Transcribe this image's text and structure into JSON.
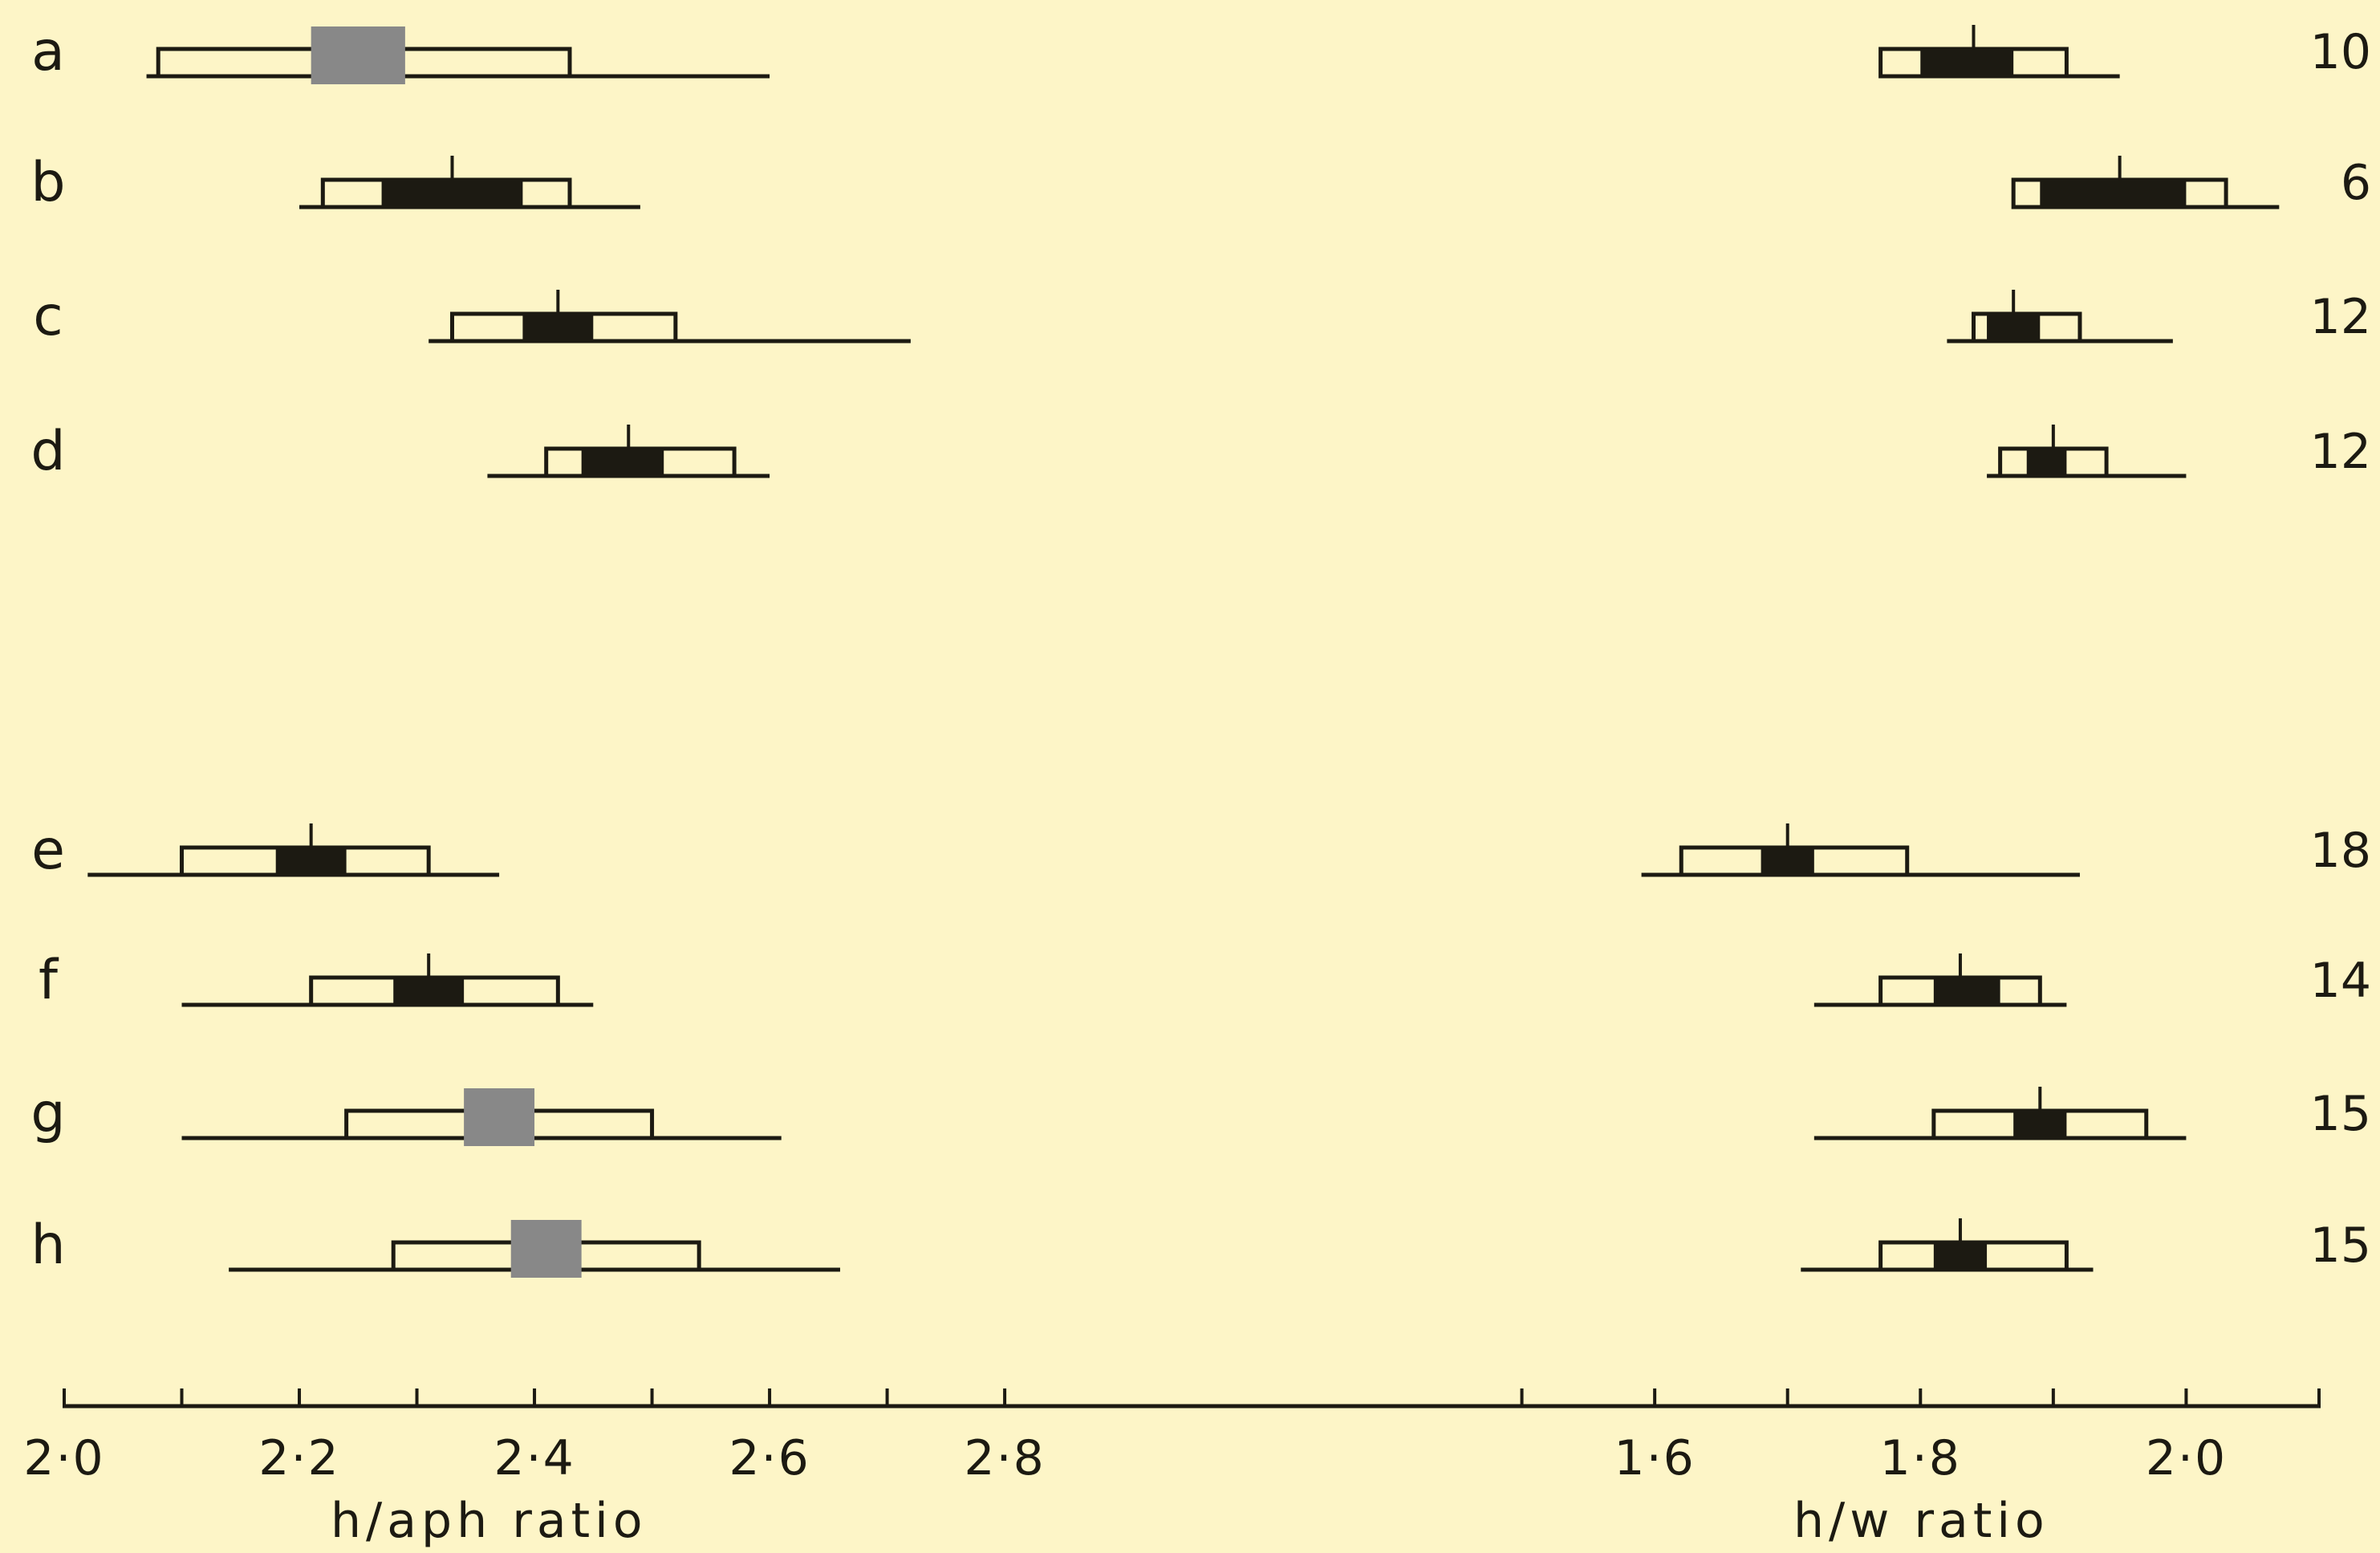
{
  "colors": {
    "background": "#fdf5c7",
    "ink": "#1c1a12",
    "box_fill": "#fdf5c7",
    "mean_fill": "#1c1a12",
    "highlight": "#888888"
  },
  "chart_data": [
    {
      "type": "box",
      "panel": "left",
      "xlabel": "h/aph ratio",
      "xlim": [
        2.0,
        2.86
      ],
      "tick_values": [
        2.0,
        2.1,
        2.2,
        2.3,
        2.4,
        2.5,
        2.6,
        2.7,
        2.8
      ],
      "tick_labels": [
        {
          "value": 2.0,
          "label": "2·0"
        },
        {
          "value": 2.2,
          "label": "2·2"
        },
        {
          "value": 2.4,
          "label": "2·4"
        },
        {
          "value": 2.6,
          "label": "2·6"
        },
        {
          "value": 2.8,
          "label": "2·8"
        }
      ],
      "series": [
        {
          "label": "a",
          "min": 2.07,
          "max": 2.6,
          "sd_low": 2.08,
          "sd_high": 2.43,
          "mean_low": 2.21,
          "mean_high": 2.29,
          "mean": 2.25,
          "mean_marker": "grey"
        },
        {
          "label": "b",
          "min": 2.2,
          "max": 2.49,
          "sd_low": 2.22,
          "sd_high": 2.43,
          "mean_low": 2.27,
          "mean_high": 2.39,
          "mean": 2.33,
          "mean_marker": "black"
        },
        {
          "label": "c",
          "min": 2.31,
          "max": 2.72,
          "sd_low": 2.33,
          "sd_high": 2.52,
          "mean_low": 2.39,
          "mean_high": 2.45,
          "mean": 2.42,
          "mean_marker": "black"
        },
        {
          "label": "d",
          "min": 2.36,
          "max": 2.6,
          "sd_low": 2.41,
          "sd_high": 2.57,
          "mean_low": 2.44,
          "mean_high": 2.51,
          "mean": 2.48,
          "mean_marker": "black"
        },
        {
          "label": "e",
          "min": 2.02,
          "max": 2.37,
          "sd_low": 2.1,
          "sd_high": 2.31,
          "mean_low": 2.18,
          "mean_high": 2.24,
          "mean": 2.21,
          "mean_marker": "black"
        },
        {
          "label": "f",
          "min": 2.1,
          "max": 2.45,
          "sd_low": 2.21,
          "sd_high": 2.42,
          "mean_low": 2.28,
          "mean_high": 2.34,
          "mean": 2.31,
          "mean_marker": "black"
        },
        {
          "label": "g",
          "min": 2.1,
          "max": 2.61,
          "sd_low": 2.24,
          "sd_high": 2.5,
          "mean_low": 2.34,
          "mean_high": 2.4,
          "mean": 2.37,
          "mean_marker": "grey"
        },
        {
          "label": "h",
          "min": 2.14,
          "max": 2.66,
          "sd_low": 2.28,
          "sd_high": 2.54,
          "mean_low": 2.38,
          "mean_high": 2.44,
          "mean": 2.41,
          "mean_marker": "grey"
        }
      ]
    },
    {
      "type": "box",
      "panel": "right",
      "xlabel": "h/w ratio",
      "xlim": [
        1.49,
        2.1
      ],
      "tick_values": [
        1.5,
        1.6,
        1.7,
        1.8,
        1.9,
        2.0,
        2.1
      ],
      "tick_labels": [
        {
          "value": 1.6,
          "label": "1·6"
        },
        {
          "value": 1.8,
          "label": "1·8"
        },
        {
          "value": 2.0,
          "label": "2·0"
        }
      ],
      "series": [
        {
          "label": "a",
          "min": 1.77,
          "max": 1.95,
          "sd_low": 1.77,
          "sd_high": 1.91,
          "mean_low": 1.8,
          "mean_high": 1.87,
          "mean": 1.84,
          "mean_marker": "black"
        },
        {
          "label": "b",
          "min": 1.87,
          "max": 2.07,
          "sd_low": 1.87,
          "sd_high": 2.03,
          "mean_low": 1.89,
          "mean_high": 2.0,
          "mean": 1.95,
          "mean_marker": "black"
        },
        {
          "label": "c",
          "min": 1.82,
          "max": 1.99,
          "sd_low": 1.84,
          "sd_high": 1.92,
          "mean_low": 1.85,
          "mean_high": 1.89,
          "mean": 1.87,
          "mean_marker": "black"
        },
        {
          "label": "d",
          "min": 1.85,
          "max": 2.0,
          "sd_low": 1.86,
          "sd_high": 1.94,
          "mean_low": 1.88,
          "mean_high": 1.91,
          "mean": 1.9,
          "mean_marker": "black"
        },
        {
          "label": "e",
          "min": 1.59,
          "max": 1.92,
          "sd_low": 1.62,
          "sd_high": 1.79,
          "mean_low": 1.68,
          "mean_high": 1.72,
          "mean": 1.7,
          "mean_marker": "black"
        },
        {
          "label": "f",
          "min": 1.72,
          "max": 1.91,
          "sd_low": 1.77,
          "sd_high": 1.89,
          "mean_low": 1.81,
          "mean_high": 1.86,
          "mean": 1.83,
          "mean_marker": "black"
        },
        {
          "label": "g",
          "min": 1.72,
          "max": 2.0,
          "sd_low": 1.81,
          "sd_high": 1.97,
          "mean_low": 1.87,
          "mean_high": 1.91,
          "mean": 1.89,
          "mean_marker": "black"
        },
        {
          "label": "h",
          "min": 1.71,
          "max": 1.93,
          "sd_low": 1.77,
          "sd_high": 1.91,
          "mean_low": 1.81,
          "mean_high": 1.85,
          "mean": 1.83,
          "mean_marker": "black"
        }
      ]
    }
  ],
  "sample_sizes": [
    {
      "label": "a",
      "n": "10"
    },
    {
      "label": "b",
      "n": "6"
    },
    {
      "label": "c",
      "n": "12"
    },
    {
      "label": "d",
      "n": "12"
    },
    {
      "label": "e",
      "n": "18"
    },
    {
      "label": "f",
      "n": "14"
    },
    {
      "label": "g",
      "n": "15"
    },
    {
      "label": "h",
      "n": "15"
    }
  ]
}
